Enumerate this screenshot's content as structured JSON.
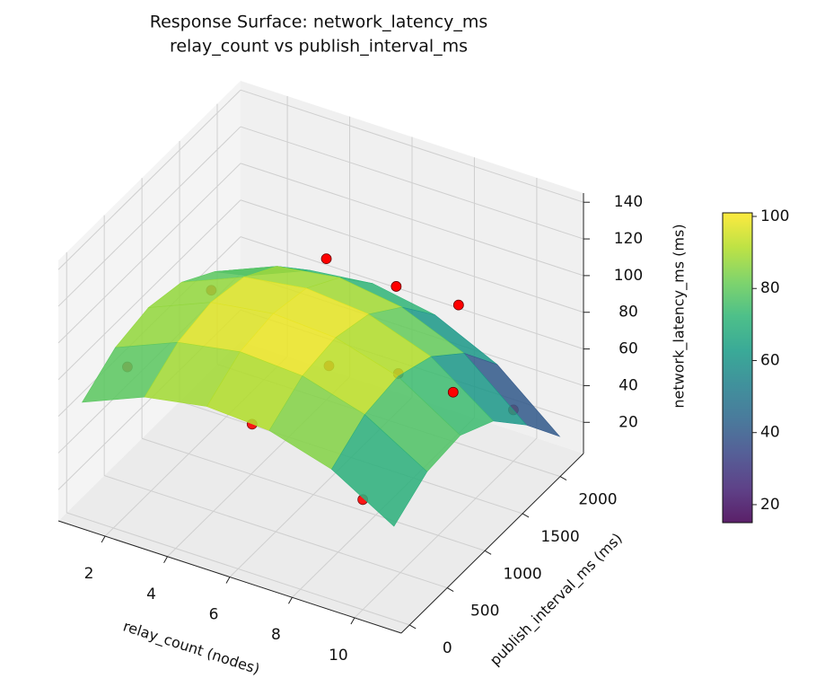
{
  "chart_data": {
    "type": "surface3d",
    "title": [
      "Response Surface: network_latency_ms",
      "relay_count vs publish_interval_ms"
    ],
    "x_label": "relay_count (nodes)",
    "y_label": "publish_interval_ms (ms)",
    "z_label": "network_latency_ms (ms)",
    "xlim": [
      0.5,
      11.5
    ],
    "ylim": [
      -110,
      2310
    ],
    "zlim": [
      3,
      145
    ],
    "xticks": [
      2,
      4,
      6,
      8,
      10
    ],
    "yticks": [
      0,
      500,
      1000,
      1500,
      2000
    ],
    "zticks": [
      20,
      40,
      60,
      80,
      100,
      120,
      140
    ],
    "grid": true,
    "surface": {
      "colormap": "viridis",
      "clim": [
        15,
        101
      ],
      "x": [
        1,
        3,
        5,
        7,
        9,
        11
      ],
      "y": [
        0,
        440,
        880,
        1320,
        1760,
        2200
      ],
      "z": [
        [
          66,
          80,
          86,
          84,
          74,
          54
        ],
        [
          78,
          92,
          98,
          96,
          86,
          66
        ],
        [
          82,
          96,
          101,
          99,
          89,
          68
        ],
        [
          78,
          92,
          97,
          94,
          82,
          58
        ],
        [
          66,
          80,
          85,
          80,
          66,
          38
        ],
        [
          46,
          60,
          64,
          58,
          42,
          14
        ]
      ]
    },
    "colorbar_ticks": [
      20,
      40,
      60,
      80,
      100
    ],
    "points": {
      "color": "red",
      "x": [
        1,
        2,
        4,
        5,
        6.5,
        6,
        8,
        8,
        10,
        10,
        10
      ],
      "y": [
        600,
        1300,
        2000,
        600,
        1000,
        2100,
        1300,
        2100,
        0,
        1200,
        2000
      ],
      "z": [
        61,
        80,
        80,
        52,
        76,
        72,
        68,
        73,
        63,
        73,
        31
      ]
    }
  }
}
